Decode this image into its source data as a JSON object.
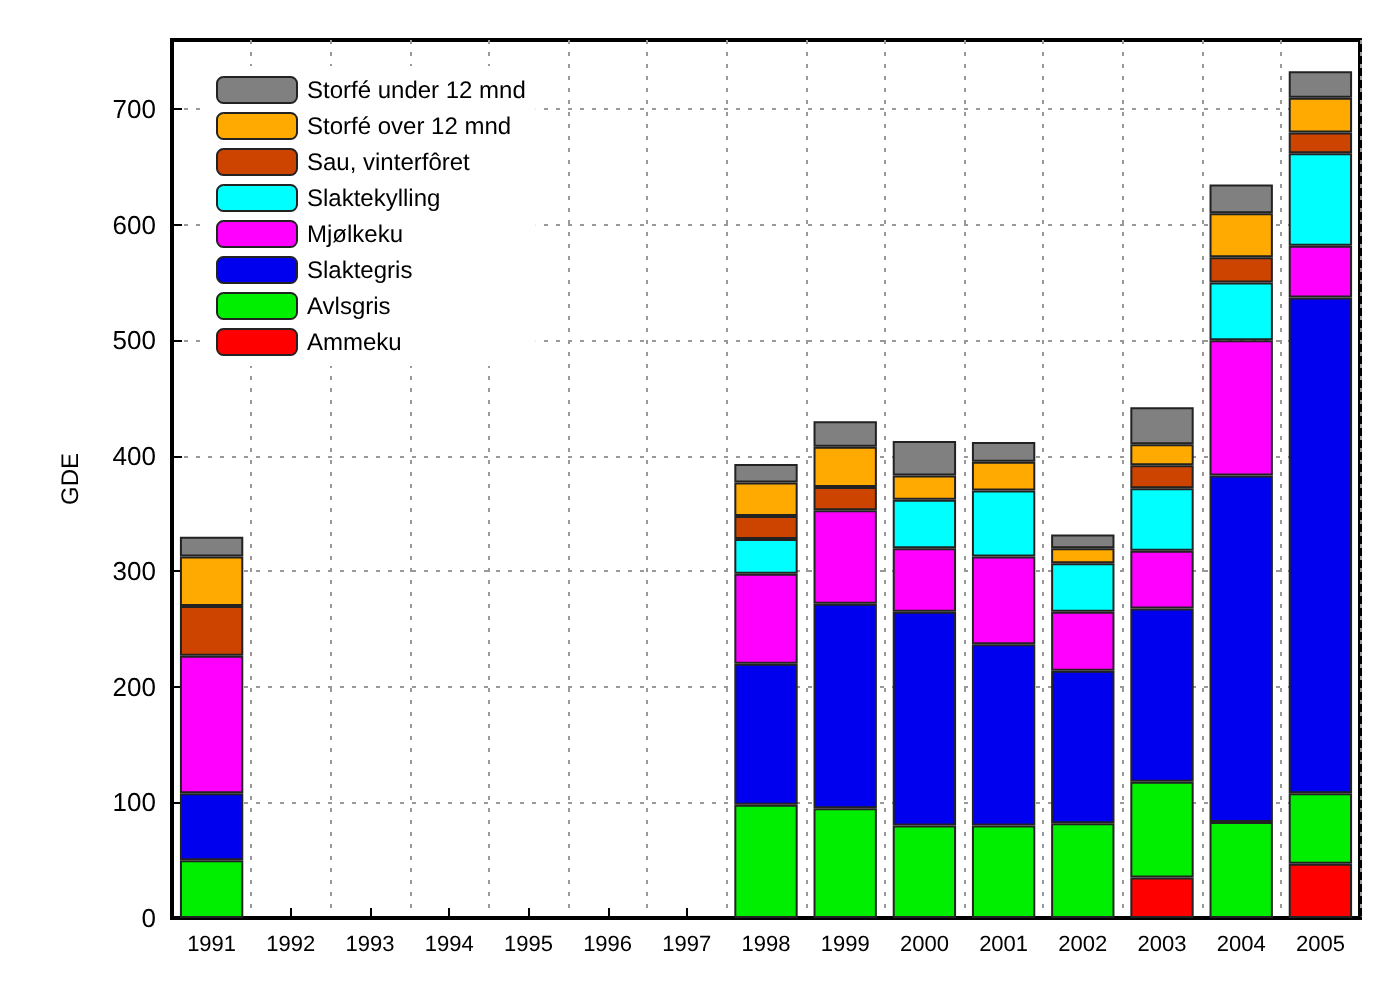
{
  "chart_data": {
    "type": "bar",
    "stacked": true,
    "ylabel": "GDE",
    "categories": [
      "1991",
      "1992",
      "1993",
      "1994",
      "1995",
      "1996",
      "1997",
      "1998",
      "1999",
      "2000",
      "2001",
      "2002",
      "2003",
      "2004",
      "2005"
    ],
    "series": [
      {
        "name": "Ammeku",
        "color": "#ff0000",
        "values": [
          null,
          null,
          null,
          null,
          null,
          null,
          null,
          null,
          null,
          null,
          null,
          null,
          35,
          null,
          47
        ]
      },
      {
        "name": "Avlsgris",
        "color": "#00ee00",
        "values": [
          50,
          null,
          null,
          null,
          null,
          null,
          null,
          98,
          95,
          80,
          80,
          82,
          83,
          83,
          61
        ]
      },
      {
        "name": "Slaktegris",
        "color": "#0000ee",
        "values": [
          58,
          null,
          null,
          null,
          null,
          null,
          null,
          122,
          177,
          185,
          157,
          132,
          150,
          300,
          429
        ]
      },
      {
        "name": "Mjølkeku",
        "color": "#ff00ff",
        "values": [
          119,
          null,
          null,
          null,
          null,
          null,
          null,
          78,
          81,
          55,
          76,
          51,
          50,
          117,
          45
        ]
      },
      {
        "name": "Slaktekylling",
        "color": "#00ffff",
        "values": [
          null,
          null,
          null,
          null,
          null,
          null,
          null,
          30,
          null,
          42,
          57,
          42,
          54,
          50,
          80
        ]
      },
      {
        "name": "Sau, vinterfôret",
        "color": "#cc4400",
        "values": [
          43,
          null,
          null,
          null,
          null,
          null,
          null,
          20,
          20,
          null,
          null,
          null,
          20,
          22,
          18
        ]
      },
      {
        "name": "Storfé over 12 mnd",
        "color": "#ffaa00",
        "values": [
          43,
          null,
          null,
          null,
          null,
          null,
          null,
          29,
          35,
          21,
          25,
          13,
          18,
          38,
          30
        ]
      },
      {
        "name": "Storfé under 12 mnd",
        "color": "#808080",
        "values": [
          17,
          null,
          null,
          null,
          null,
          null,
          null,
          16,
          22,
          30,
          17,
          12,
          32,
          25,
          23
        ]
      }
    ],
    "ylim": [
      0,
      760
    ],
    "yticks": [
      0,
      100,
      200,
      300,
      400,
      500,
      600,
      700
    ],
    "grid": true,
    "legend": "top left"
  }
}
